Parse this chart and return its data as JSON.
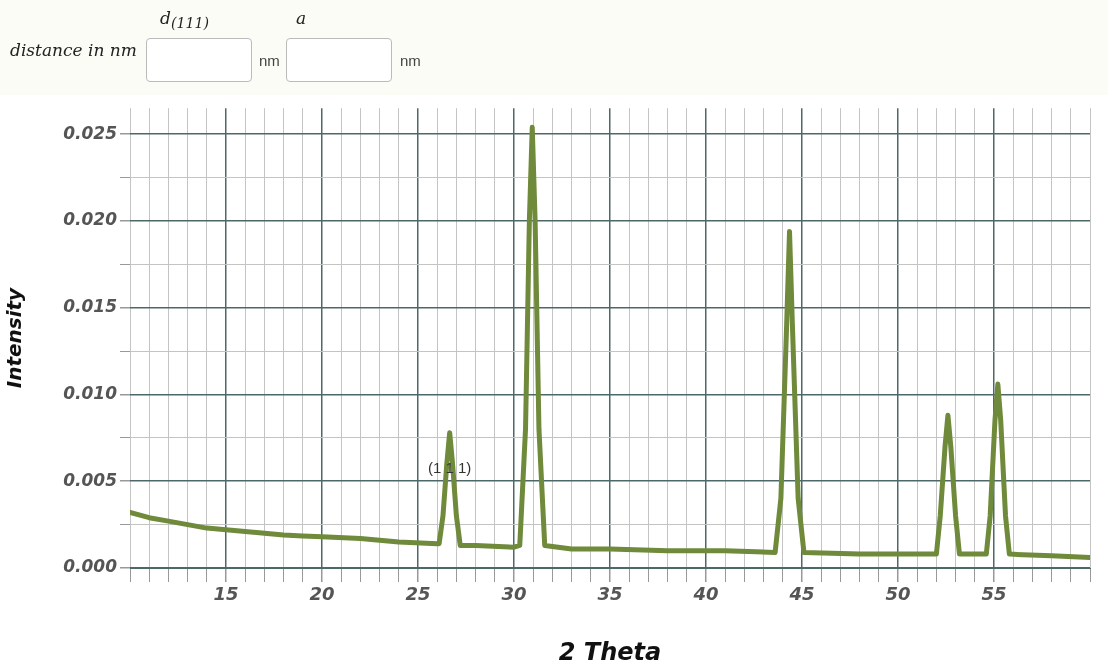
{
  "chart_data": {
    "type": "line",
    "xlabel": "2 Theta",
    "ylabel": "Intensity",
    "x": [
      10,
      11,
      12,
      13,
      14,
      15,
      16,
      17,
      18,
      19,
      20,
      22,
      24,
      26,
      26.1,
      26.3,
      26.5,
      26.65,
      26.8,
      27.0,
      27.2,
      28,
      30,
      30.3,
      30.6,
      30.8,
      30.95,
      31.1,
      31.3,
      31.6,
      33,
      35,
      38,
      41,
      43.6,
      43.9,
      44.2,
      44.35,
      44.5,
      44.8,
      45.1,
      48,
      52.0,
      52.2,
      52.45,
      52.6,
      52.75,
      53.0,
      53.2,
      54.6,
      54.8,
      55.05,
      55.2,
      55.35,
      55.6,
      55.8,
      58,
      60
    ],
    "series": [
      {
        "color": "#6f8a3a",
        "values": [
          0.0032,
          0.0029,
          0.0027,
          0.0025,
          0.0023,
          0.0022,
          0.0021,
          0.002,
          0.0019,
          0.00185,
          0.0018,
          0.0017,
          0.0015,
          0.0014,
          0.0014,
          0.003,
          0.006,
          0.0078,
          0.006,
          0.003,
          0.0013,
          0.0013,
          0.0012,
          0.0013,
          0.008,
          0.02,
          0.0254,
          0.02,
          0.008,
          0.0013,
          0.0011,
          0.0011,
          0.001,
          0.001,
          0.0009,
          0.004,
          0.014,
          0.0194,
          0.014,
          0.004,
          0.0009,
          0.0008,
          0.0008,
          0.003,
          0.007,
          0.0088,
          0.007,
          0.003,
          0.0008,
          0.0008,
          0.003,
          0.0085,
          0.0106,
          0.0085,
          0.003,
          0.0008,
          0.0007,
          0.0006
        ]
      }
    ],
    "xlim": [
      10,
      60
    ],
    "xticks": [
      {
        "value": 10,
        "label": null
      },
      {
        "value": 11,
        "label": null
      },
      {
        "value": 12,
        "label": null
      },
      {
        "value": 13,
        "label": null
      },
      {
        "value": 14,
        "label": null
      },
      15,
      {
        "value": 16,
        "label": null
      },
      {
        "value": 17,
        "label": null
      },
      {
        "value": 18,
        "label": null
      },
      {
        "value": 19,
        "label": null
      },
      20,
      {
        "value": 21,
        "label": null
      },
      {
        "value": 22,
        "label": null
      },
      {
        "value": 23,
        "label": null
      },
      {
        "value": 24,
        "label": null
      },
      25,
      {
        "value": 26,
        "label": null
      },
      {
        "value": 27,
        "label": null
      },
      {
        "value": 28,
        "label": null
      },
      {
        "value": 29,
        "label": null
      },
      30,
      {
        "value": 31,
        "label": null
      },
      {
        "value": 32,
        "label": null
      },
      {
        "value": 33,
        "label": null
      },
      {
        "value": 34,
        "label": null
      },
      35,
      {
        "value": 36,
        "label": null
      },
      {
        "value": 37,
        "label": null
      },
      {
        "value": 38,
        "label": null
      },
      {
        "value": 39,
        "label": null
      },
      40,
      {
        "value": 41,
        "label": null
      },
      {
        "value": 42,
        "label": null
      },
      {
        "value": 43,
        "label": null
      },
      {
        "value": 44,
        "label": null
      },
      45,
      {
        "value": 46,
        "label": null
      },
      {
        "value": 47,
        "label": null
      },
      {
        "value": 48,
        "label": null
      },
      {
        "value": 49,
        "label": null
      },
      50,
      {
        "value": 51,
        "label": null
      },
      {
        "value": 52,
        "label": null
      },
      {
        "value": 53,
        "label": null
      },
      {
        "value": 54,
        "label": null
      },
      55,
      {
        "value": 56,
        "label": null
      },
      {
        "value": 57,
        "label": null
      },
      {
        "value": 58,
        "label": null
      },
      {
        "value": 59,
        "label": null
      },
      {
        "value": 60,
        "label": null
      }
    ],
    "ylim": [
      0,
      0.0265
    ],
    "yticks": [
      {
        "value": 0,
        "label": "0.000"
      },
      {
        "value": 0.0025,
        "label": null
      },
      {
        "value": 0.005,
        "label": "0.005"
      },
      {
        "value": 0.0075,
        "label": null
      },
      {
        "value": 0.01,
        "label": "0.010"
      },
      {
        "value": 0.0125,
        "label": null
      },
      {
        "value": 0.015,
        "label": "0.015"
      },
      {
        "value": 0.0175,
        "label": null
      },
      {
        "value": 0.02,
        "label": "0.020"
      },
      {
        "value": 0.0225,
        "label": null
      },
      {
        "value": 0.025,
        "label": "0.025"
      }
    ],
    "grid": true,
    "legend": false,
    "marker": "none",
    "line_style": "solid",
    "annotations": [
      "distance in nm",
      "d$_{(111)}$",
      "a",
      "nm",
      "nm",
      {
        "text": "(1 1 1)",
        "x": 26.65,
        "y": 0.0058
      }
    ]
  }
}
